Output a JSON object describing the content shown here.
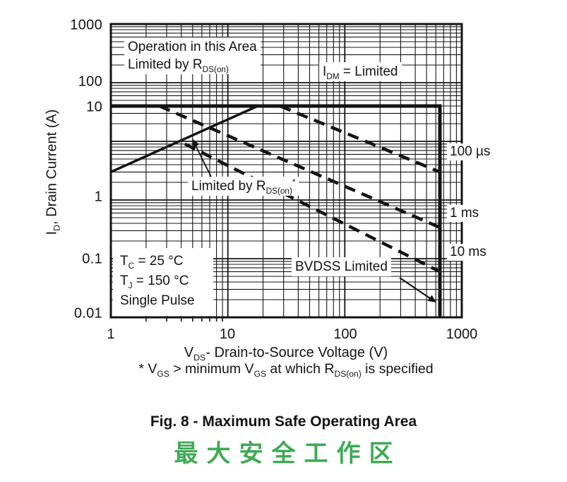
{
  "chart_data": {
    "type": "line",
    "title": "Fig. 8 - Maximum Safe Operating Area",
    "title_zh": "最大安全工作区",
    "x_axis": {
      "scale": "log",
      "min": 1,
      "max": 1000,
      "ticks": [
        "1",
        "10",
        "100",
        "1000"
      ],
      "label_pre": "V",
      "label_sub": "DS",
      "label_post": "- Drain-to-Source Voltage (V)"
    },
    "y_axis": {
      "scale": "log",
      "min": 0.01,
      "max": 1000,
      "ticks": [
        "1000",
        "100",
        "10",
        "1",
        "0.1",
        "0.01"
      ],
      "label_pre": "I",
      "label_sub": "D",
      "label_post": ", Drain Current (A)"
    },
    "grid": true,
    "legend_position": "curve labels at right edge of plot",
    "series": [
      {
        "name": "IDM limit and BVDSS boundary",
        "style": "solid-thick",
        "points": [
          [
            1,
            40
          ],
          [
            650,
            40
          ],
          [
            650,
            0.01
          ]
        ]
      },
      {
        "name": "RDS(on) limit",
        "style": "solid",
        "points": [
          [
            1,
            3
          ],
          [
            18,
            40
          ]
        ]
      },
      {
        "name": "100 µs",
        "style": "dashed",
        "points": [
          [
            28,
            40
          ],
          [
            650,
            3
          ]
        ]
      },
      {
        "name": "1 ms",
        "style": "dashed",
        "points": [
          [
            2.6,
            40
          ],
          [
            650,
            0.34
          ]
        ]
      },
      {
        "name": "10 ms",
        "style": "dashed",
        "points": [
          [
            4.3,
            9
          ],
          [
            650,
            0.06
          ]
        ]
      }
    ],
    "conditions": [
      "TC = 25 °C",
      "TJ = 150 °C",
      "Single Pulse"
    ]
  },
  "annotations": {
    "op_area": {
      "line1": "Operation in this Area",
      "line2_pre": "Limited by R",
      "line2_sub": "DS(on)"
    },
    "idm": {
      "pre": "I",
      "sub": "DM",
      "post": " = Limited"
    },
    "limited_by": {
      "pre": "Limited by R",
      "sub": "DS(on)",
      "sup": "*"
    },
    "conditions": {
      "tc_pre": "T",
      "tc_sub": "C",
      "tc_post": " = 25 °C",
      "tj_pre": "T",
      "tj_sub": "J",
      "tj_post": " = 150 °C",
      "pulse": "Single Pulse"
    },
    "bvdss": "BVDSS Limited",
    "curve_labels": [
      "100 µs",
      "1 ms",
      "10 ms"
    ]
  },
  "footnote": {
    "p1": "* V",
    "s1": "GS",
    "p2": " > minimum V",
    "s2": "GS",
    "p3": " at which R",
    "s3": "DS(on)",
    "p4": " is specified"
  },
  "figure": {
    "caption": "Fig. 8 - Maximum Safe Operating Area",
    "caption_zh": "最大安全工作区",
    "caption_zh_color": "#3faa55",
    "line_color": "#141414"
  }
}
